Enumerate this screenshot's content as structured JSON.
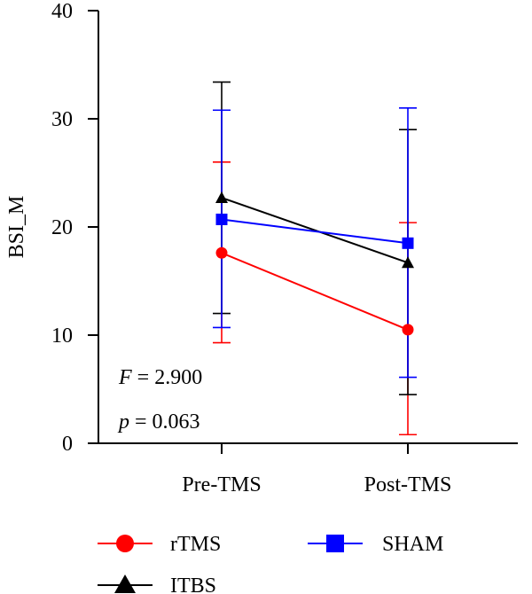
{
  "chart_data": {
    "type": "line",
    "categories": [
      "Pre-TMS",
      "Post-TMS"
    ],
    "ylabel": "BSI_M",
    "ylim": [
      0,
      40
    ],
    "yticks": [
      0,
      10,
      20,
      30,
      40
    ],
    "grid": false,
    "legend_position": "bottom",
    "series": [
      {
        "name": "rTMS",
        "marker": "circle",
        "color": "#ff0000",
        "values": [
          17.6,
          10.5
        ],
        "error_low": [
          9.3,
          0.8
        ],
        "error_high": [
          26.0,
          20.4
        ]
      },
      {
        "name": "ITBS",
        "marker": "triangle",
        "color": "#000000",
        "values": [
          22.7,
          16.7
        ],
        "error_low": [
          12.0,
          4.5
        ],
        "error_high": [
          33.4,
          29.0
        ]
      },
      {
        "name": "SHAM",
        "marker": "square",
        "color": "#0000ff",
        "values": [
          20.7,
          18.5
        ],
        "error_low": [
          10.7,
          6.1
        ],
        "error_high": [
          30.8,
          31.0
        ]
      }
    ],
    "annotations": {
      "f_label": "F",
      "f_value": " = 2.900",
      "p_label": "p",
      "p_value": " = 0.063"
    }
  }
}
